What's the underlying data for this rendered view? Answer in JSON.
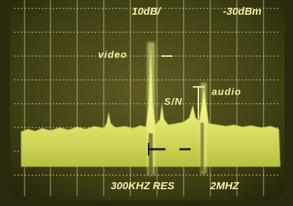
{
  "screen": {
    "top_labels": [
      "10dB/",
      "-30dBm"
    ],
    "annotations": {
      "video": "video",
      "signal_to_noise": "S/N",
      "audio": "audio"
    },
    "bottom_labels": [
      "300KHZ RES",
      "2MHZ"
    ]
  }
}
